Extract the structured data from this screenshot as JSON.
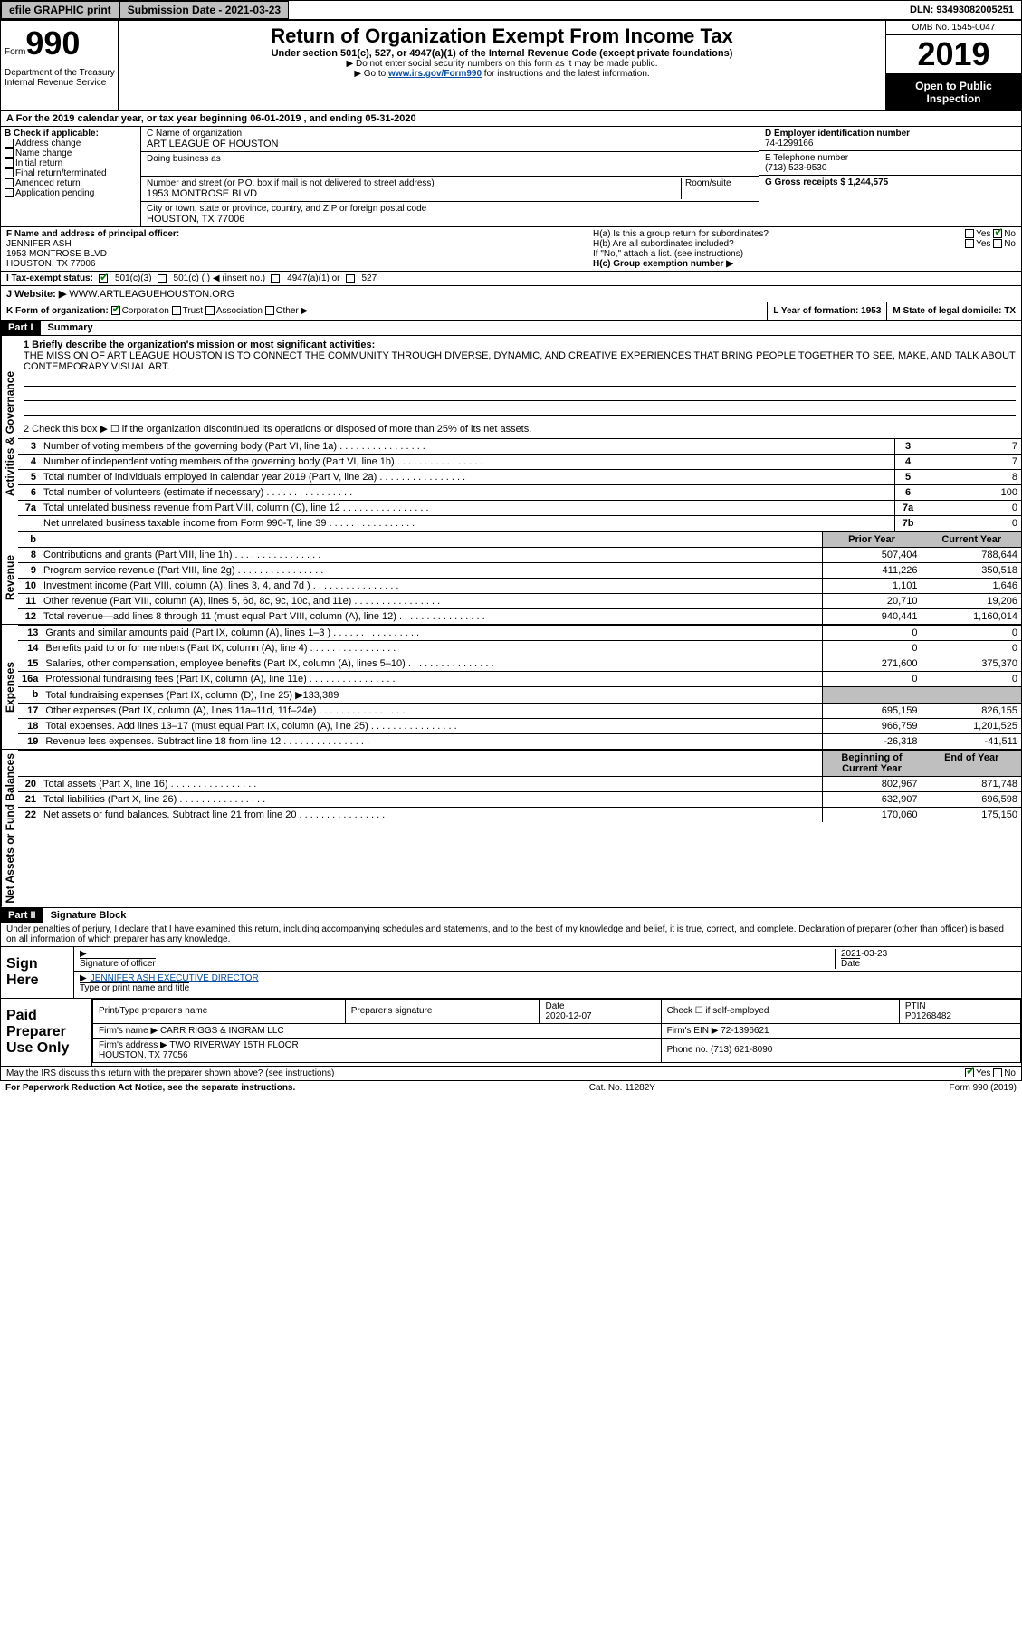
{
  "topbar": {
    "efile": "efile GRAPHIC print",
    "submission_label": "Submission Date - 2021-03-23",
    "dln": "DLN: 93493082005251"
  },
  "header": {
    "form_word": "Form",
    "form_num": "990",
    "title": "Return of Organization Exempt From Income Tax",
    "subtitle": "Under section 501(c), 527, or 4947(a)(1) of the Internal Revenue Code (except private foundations)",
    "note1": "▶ Do not enter social security numbers on this form as it may be made public.",
    "note2_pre": "▶ Go to ",
    "note2_link": "www.irs.gov/Form990",
    "note2_post": " for instructions and the latest information.",
    "omb": "OMB No. 1545-0047",
    "year": "2019",
    "inspection": "Open to Public Inspection",
    "dept": "Department of the Treasury\nInternal Revenue Service"
  },
  "row_a": "A For the 2019 calendar year, or tax year beginning 06-01-2019    , and ending 05-31-2020",
  "b": {
    "label": "B Check if applicable:",
    "address_change": "Address change",
    "name_change": "Name change",
    "initial_return": "Initial return",
    "final": "Final return/terminated",
    "amended": "Amended return",
    "application": "Application pending"
  },
  "c": {
    "name_label": "C Name of organization",
    "name": "ART LEAGUE OF HOUSTON",
    "dba_label": "Doing business as",
    "addr_label": "Number and street (or P.O. box if mail is not delivered to street address)",
    "room_label": "Room/suite",
    "addr": "1953 MONTROSE BLVD",
    "city_label": "City or town, state or province, country, and ZIP or foreign postal code",
    "city": "HOUSTON, TX  77006"
  },
  "d": {
    "label": "D Employer identification number",
    "val": "74-1299166"
  },
  "e": {
    "label": "E Telephone number",
    "val": "(713) 523-9530"
  },
  "g": {
    "label": "G Gross receipts $ 1,244,575"
  },
  "f": {
    "label": "F  Name and address of principal officer:",
    "name": "JENNIFER ASH",
    "addr1": "1953 MONTROSE BLVD",
    "addr2": "HOUSTON, TX  77006"
  },
  "h": {
    "a": "H(a)  Is this a group return for subordinates?",
    "b": "H(b)  Are all subordinates included?",
    "b_note": "If \"No,\" attach a list. (see instructions)",
    "c": "H(c)  Group exemption number ▶",
    "yes": "Yes",
    "no": "No"
  },
  "i": {
    "label": "I   Tax-exempt status:",
    "c3": "501(c)(3)",
    "c": "501(c) (   ) ◀ (insert no.)",
    "a1": "4947(a)(1) or",
    "s527": "527"
  },
  "j": {
    "label": "J    Website: ▶",
    "val": "WWW.ARTLEAGUEHOUSTON.ORG"
  },
  "k": {
    "label": "K Form of organization:",
    "corp": "Corporation",
    "trust": "Trust",
    "assoc": "Association",
    "other": "Other ▶"
  },
  "l": {
    "label": "L Year of formation: 1953"
  },
  "m": {
    "label": "M State of legal domicile: TX"
  },
  "part1": {
    "num": "Part I",
    "title": "Summary"
  },
  "sections": {
    "ag": "Activities & Governance",
    "rev": "Revenue",
    "exp": "Expenses",
    "na": "Net Assets or Fund Balances"
  },
  "mission": {
    "label": "1   Briefly describe the organization's mission or most significant activities:",
    "text": "THE MISSION OF ART LEAGUE HOUSTON IS TO CONNECT THE COMMUNITY THROUGH DIVERSE, DYNAMIC, AND CREATIVE EXPERIENCES THAT BRING PEOPLE TOGETHER TO SEE, MAKE, AND TALK ABOUT CONTEMPORARY VISUAL ART."
  },
  "line2": "2   Check this box ▶ ☐  if the organization discontinued its operations or disposed of more than 25% of its net assets.",
  "ag_lines": [
    {
      "n": "3",
      "t": "Number of voting members of the governing body (Part VI, line 1a)",
      "box": "3",
      "v": "7"
    },
    {
      "n": "4",
      "t": "Number of independent voting members of the governing body (Part VI, line 1b)",
      "box": "4",
      "v": "7"
    },
    {
      "n": "5",
      "t": "Total number of individuals employed in calendar year 2019 (Part V, line 2a)",
      "box": "5",
      "v": "8"
    },
    {
      "n": "6",
      "t": "Total number of volunteers (estimate if necessary)",
      "box": "6",
      "v": "100"
    },
    {
      "n": "7a",
      "t": "Total unrelated business revenue from Part VIII, column (C), line 12",
      "box": "7a",
      "v": "0"
    },
    {
      "n": "",
      "t": "Net unrelated business taxable income from Form 990-T, line 39",
      "box": "7b",
      "v": "0"
    }
  ],
  "pycy": {
    "b": "b",
    "prior": "Prior Year",
    "current": "Current Year"
  },
  "rev_lines": [
    {
      "n": "8",
      "t": "Contributions and grants (Part VIII, line 1h)",
      "py": "507,404",
      "cy": "788,644"
    },
    {
      "n": "9",
      "t": "Program service revenue (Part VIII, line 2g)",
      "py": "411,226",
      "cy": "350,518"
    },
    {
      "n": "10",
      "t": "Investment income (Part VIII, column (A), lines 3, 4, and 7d )",
      "py": "1,101",
      "cy": "1,646"
    },
    {
      "n": "11",
      "t": "Other revenue (Part VIII, column (A), lines 5, 6d, 8c, 9c, 10c, and 11e)",
      "py": "20,710",
      "cy": "19,206"
    },
    {
      "n": "12",
      "t": "Total revenue—add lines 8 through 11 (must equal Part VIII, column (A), line 12)",
      "py": "940,441",
      "cy": "1,160,014"
    }
  ],
  "exp_lines": [
    {
      "n": "13",
      "t": "Grants and similar amounts paid (Part IX, column (A), lines 1–3 )",
      "py": "0",
      "cy": "0"
    },
    {
      "n": "14",
      "t": "Benefits paid to or for members (Part IX, column (A), line 4)",
      "py": "0",
      "cy": "0"
    },
    {
      "n": "15",
      "t": "Salaries, other compensation, employee benefits (Part IX, column (A), lines 5–10)",
      "py": "271,600",
      "cy": "375,370"
    },
    {
      "n": "16a",
      "t": "Professional fundraising fees (Part IX, column (A), line 11e)",
      "py": "0",
      "cy": "0"
    }
  ],
  "line16b": {
    "n": "b",
    "t": "Total fundraising expenses (Part IX, column (D), line 25) ▶133,389"
  },
  "exp_lines2": [
    {
      "n": "17",
      "t": "Other expenses (Part IX, column (A), lines 11a–11d, 11f–24e)",
      "py": "695,159",
      "cy": "826,155"
    },
    {
      "n": "18",
      "t": "Total expenses. Add lines 13–17 (must equal Part IX, column (A), line 25)",
      "py": "966,759",
      "cy": "1,201,525"
    },
    {
      "n": "19",
      "t": "Revenue less expenses. Subtract line 18 from line 12",
      "py": "-26,318",
      "cy": "-41,511"
    }
  ],
  "bcey": {
    "b": "Beginning of Current Year",
    "e": "End of Year"
  },
  "na_lines": [
    {
      "n": "20",
      "t": "Total assets (Part X, line 16)",
      "py": "802,967",
      "cy": "871,748"
    },
    {
      "n": "21",
      "t": "Total liabilities (Part X, line 26)",
      "py": "632,907",
      "cy": "696,598"
    },
    {
      "n": "22",
      "t": "Net assets or fund balances. Subtract line 21 from line 20",
      "py": "170,060",
      "cy": "175,150"
    }
  ],
  "part2": {
    "num": "Part II",
    "title": "Signature Block"
  },
  "decl": "Under penalties of perjury, I declare that I have examined this return, including accompanying schedules and statements, and to the best of my knowledge and belief, it is true, correct, and complete. Declaration of preparer (other than officer) is based on all information of which preparer has any knowledge.",
  "sign": {
    "label": "Sign Here",
    "sig_of": "Signature of officer",
    "date_lbl": "Date",
    "date": "2021-03-23",
    "name": "JENNIFER ASH  EXECUTIVE DIRECTOR",
    "type_lbl": "Type or print name and title"
  },
  "prep": {
    "label": "Paid Preparer Use Only",
    "h_name": "Print/Type preparer's name",
    "h_sig": "Preparer's signature",
    "h_date": "Date",
    "date": "2020-12-07",
    "h_check": "Check ☐ if self-employed",
    "h_ptin": "PTIN",
    "ptin": "P01268482",
    "firm_lbl": "Firm's name     ▶",
    "firm": "CARR RIGGS & INGRAM LLC",
    "ein_lbl": "Firm's EIN ▶",
    "ein": "72-1396621",
    "addr_lbl": "Firm's address ▶",
    "addr1": "TWO RIVERWAY 15TH FLOOR",
    "addr2": "HOUSTON, TX  77056",
    "phone_lbl": "Phone no.",
    "phone": "(713) 621-8090"
  },
  "discuss": "May the IRS discuss this return with the preparer shown above? (see instructions)",
  "footer": {
    "pra": "For Paperwork Reduction Act Notice, see the separate instructions.",
    "cat": "Cat. No. 11282Y",
    "form": "Form 990 (2019)"
  }
}
